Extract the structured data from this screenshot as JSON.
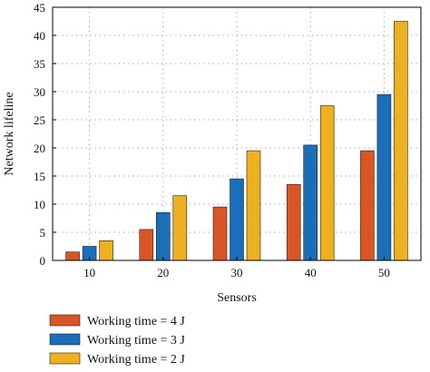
{
  "chart_data": {
    "type": "bar",
    "xlabel": "Sensors",
    "ylabel": "Network lifeline",
    "categories": [
      "10",
      "20",
      "30",
      "40",
      "50"
    ],
    "ylim": [
      0,
      45
    ],
    "yticks": [
      0,
      5,
      10,
      15,
      20,
      25,
      30,
      35,
      40,
      45
    ],
    "grid": true,
    "legend_position": "bottom-left",
    "series": [
      {
        "name": "Working time = 4 J",
        "color": "#D95525",
        "values": [
          1.5,
          5.5,
          9.5,
          13.5,
          19.5
        ]
      },
      {
        "name": "Working time = 3 J",
        "color": "#1A6FB8",
        "values": [
          2.5,
          8.5,
          14.5,
          20.5,
          29.5
        ]
      },
      {
        "name": "Working time = 2 J",
        "color": "#EDB120",
        "values": [
          3.5,
          11.5,
          19.5,
          27.5,
          42.5
        ]
      }
    ]
  }
}
